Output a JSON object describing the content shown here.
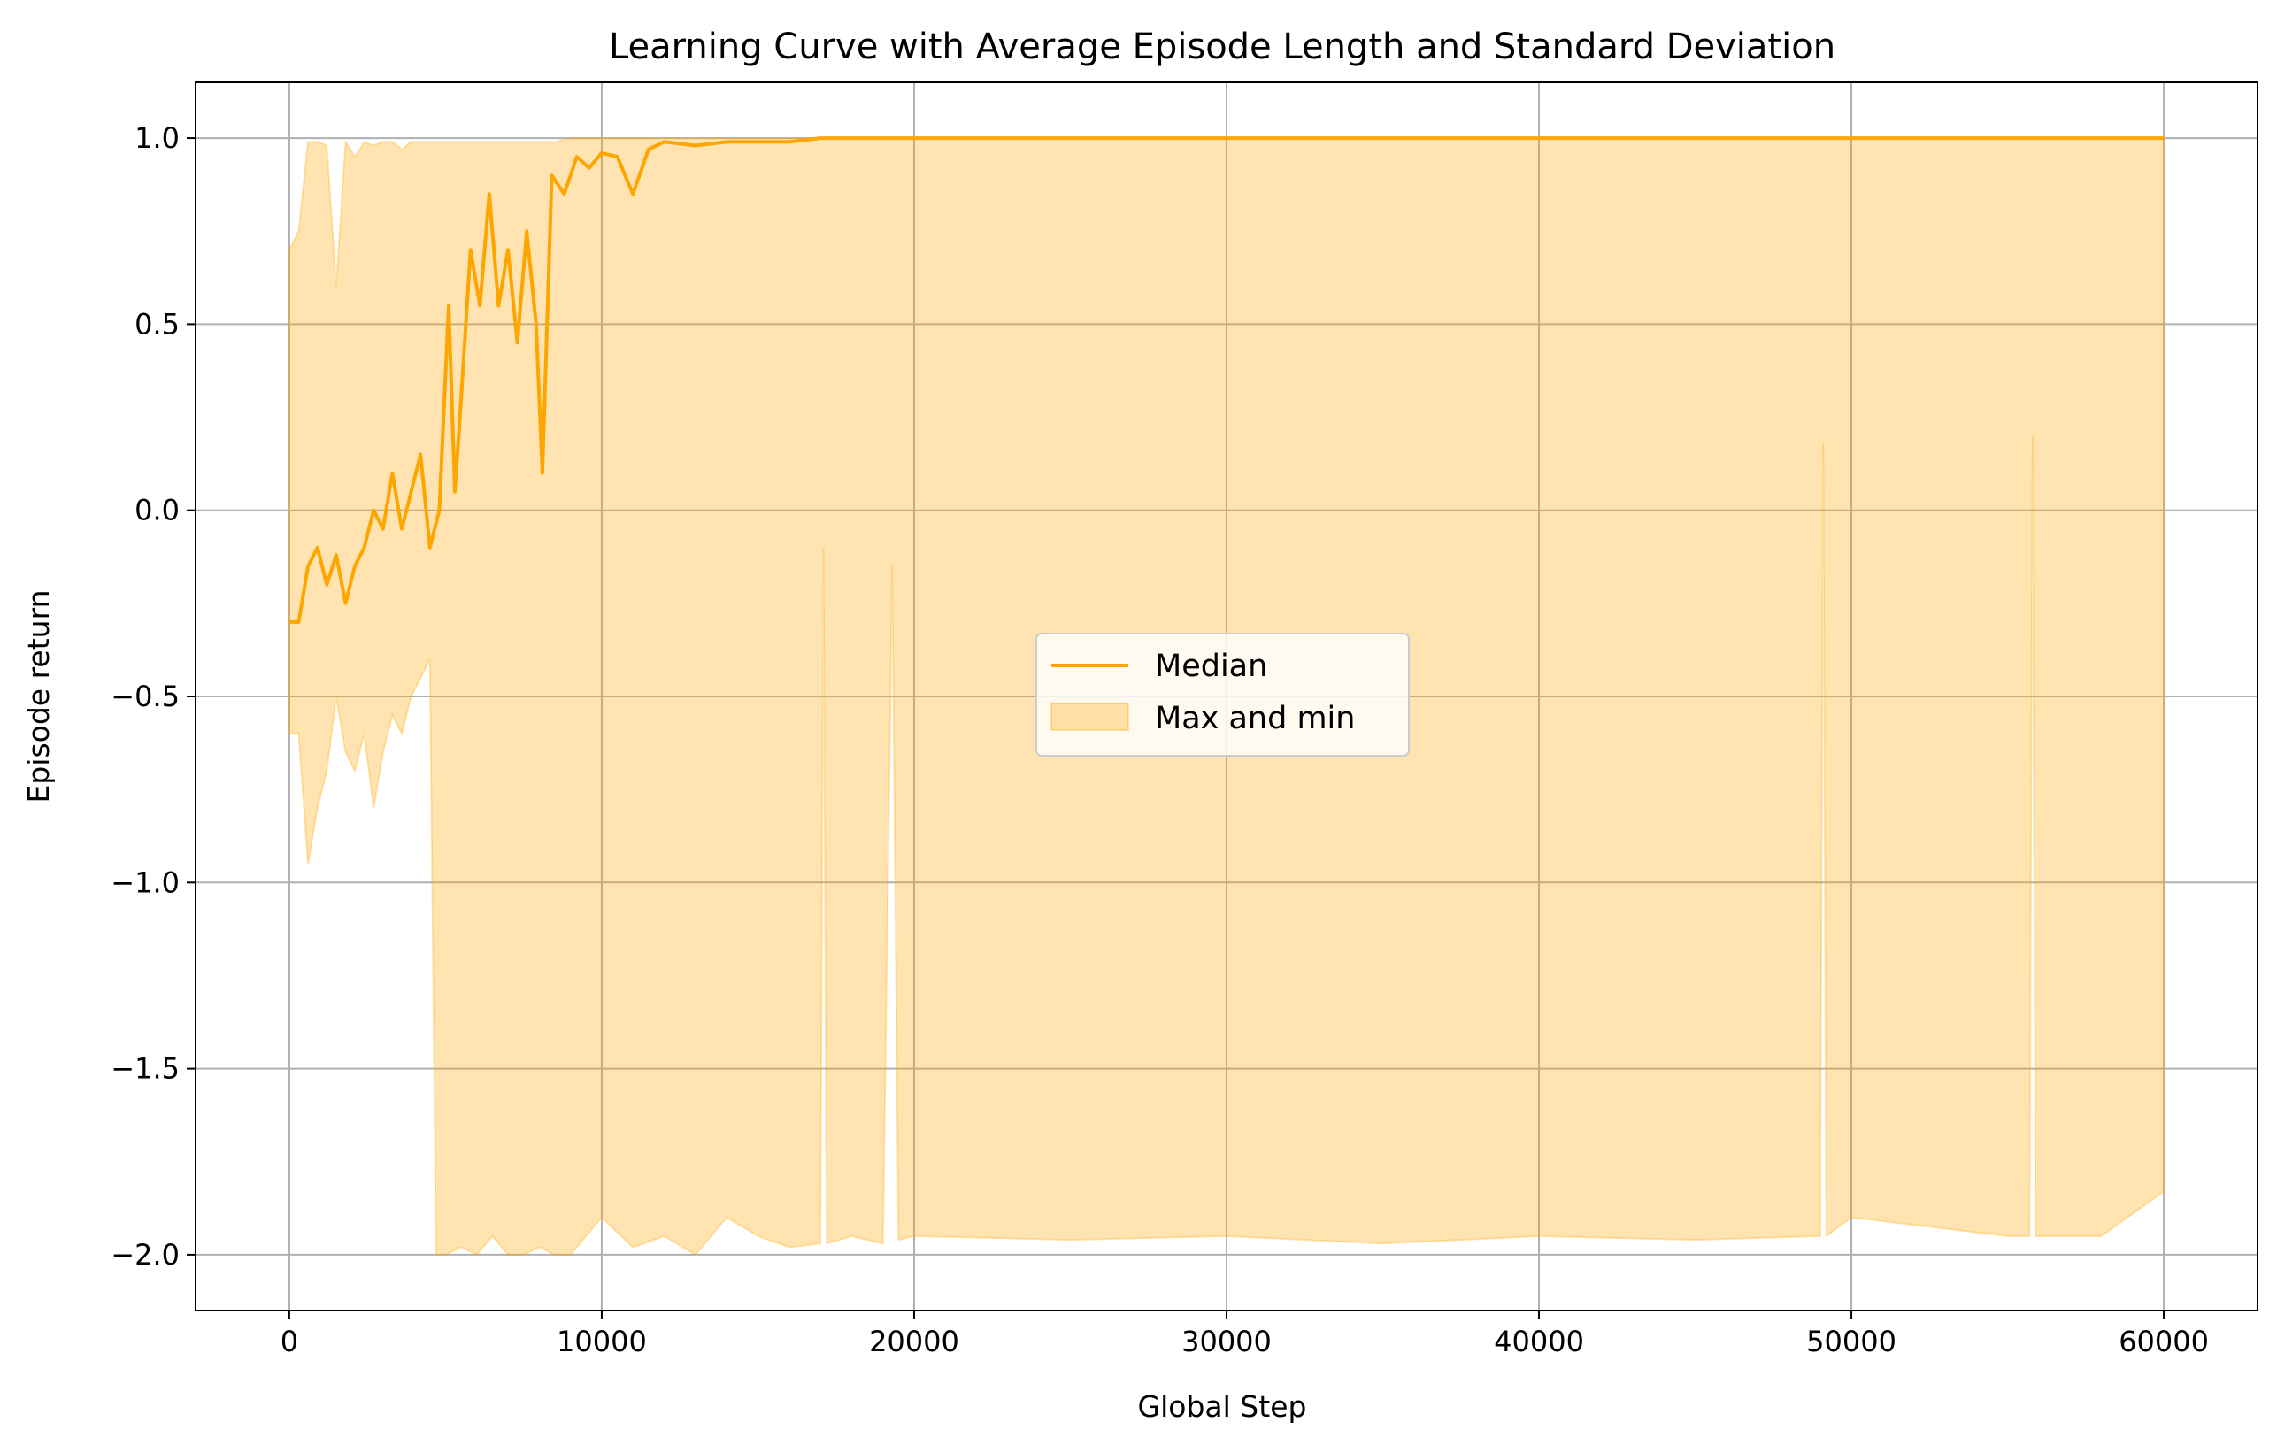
{
  "chart_data": {
    "type": "line",
    "title": "Learning Curve with Average Episode Length and Standard Deviation",
    "xlabel": "Global Step",
    "ylabel": "Episode return",
    "xlim": [
      -3000,
      63000
    ],
    "ylim": [
      -2.15,
      1.15
    ],
    "xticks": [
      0,
      10000,
      20000,
      30000,
      40000,
      50000,
      60000
    ],
    "xtick_labels": [
      "0",
      "10000",
      "20000",
      "30000",
      "40000",
      "50000",
      "60000"
    ],
    "yticks": [
      1.0,
      0.5,
      0.0,
      -0.5,
      -1.0,
      -1.5,
      -2.0
    ],
    "ytick_labels": [
      "1.0",
      "0.5",
      "0.0",
      "−0.5",
      "−1.0",
      "−1.5",
      "−2.0"
    ],
    "grid": true,
    "legend_position": "center",
    "legend": [
      "Median",
      "Max and min"
    ],
    "colors": {
      "line": "#ffa500",
      "band": "#ffa500",
      "grid": "#b0b0b0"
    },
    "series": [
      {
        "name": "Median",
        "kind": "line",
        "x": [
          0,
          300,
          600,
          900,
          1200,
          1500,
          1800,
          2100,
          2400,
          2700,
          3000,
          3300,
          3600,
          3900,
          4200,
          4500,
          4800,
          5100,
          5300,
          5500,
          5800,
          6100,
          6400,
          6700,
          7000,
          7300,
          7600,
          7900,
          8100,
          8400,
          8800,
          9200,
          9600,
          10000,
          10500,
          11000,
          11500,
          12000,
          13000,
          14000,
          15000,
          16000,
          17000,
          18000,
          19000,
          20000,
          22000,
          25000,
          30000,
          35000,
          40000,
          45000,
          50000,
          55000,
          60000
        ],
        "values": [
          -0.3,
          -0.3,
          -0.15,
          -0.1,
          -0.2,
          -0.12,
          -0.25,
          -0.15,
          -0.1,
          0.0,
          -0.05,
          0.1,
          -0.05,
          0.05,
          0.15,
          -0.1,
          0.0,
          0.55,
          0.05,
          0.3,
          0.7,
          0.55,
          0.85,
          0.55,
          0.7,
          0.45,
          0.75,
          0.5,
          0.1,
          0.9,
          0.85,
          0.95,
          0.92,
          0.96,
          0.95,
          0.85,
          0.97,
          0.99,
          0.98,
          0.99,
          0.99,
          0.99,
          1.0,
          1.0,
          1.0,
          1.0,
          1.0,
          1.0,
          1.0,
          1.0,
          1.0,
          1.0,
          1.0,
          1.0,
          1.0
        ]
      },
      {
        "name": "Max and min",
        "kind": "band",
        "x": [
          0,
          300,
          600,
          900,
          1200,
          1500,
          1800,
          2100,
          2400,
          2700,
          3000,
          3300,
          3600,
          3900,
          4200,
          4500,
          4700,
          5000,
          5500,
          6000,
          6500,
          7000,
          7500,
          8000,
          8500,
          9000,
          10000,
          11000,
          12000,
          13000,
          14000,
          15000,
          16000,
          17000,
          17100,
          17200,
          18000,
          19000,
          19300,
          19500,
          20000,
          25000,
          30000,
          35000,
          40000,
          45000,
          49000,
          49100,
          49200,
          50000,
          55000,
          55700,
          55800,
          55900,
          58000,
          60000
        ],
        "lower": [
          -0.6,
          -0.6,
          -0.95,
          -0.8,
          -0.7,
          -0.5,
          -0.65,
          -0.7,
          -0.6,
          -0.8,
          -0.65,
          -0.55,
          -0.6,
          -0.5,
          -0.45,
          -0.4,
          -2.0,
          -2.0,
          -1.98,
          -2.0,
          -1.95,
          -2.0,
          -2.0,
          -1.98,
          -2.0,
          -2.0,
          -1.9,
          -1.98,
          -1.95,
          -2.0,
          -1.9,
          -1.95,
          -1.98,
          -1.97,
          -0.1,
          -1.97,
          -1.95,
          -1.97,
          -0.15,
          -1.96,
          -1.95,
          -1.96,
          -1.95,
          -1.97,
          -1.95,
          -1.96,
          -1.95,
          0.18,
          -1.95,
          -1.9,
          -1.95,
          -1.95,
          0.2,
          -1.95,
          -1.95,
          -1.83
        ],
        "upper": [
          0.7,
          0.75,
          0.99,
          0.99,
          0.98,
          0.6,
          0.99,
          0.95,
          0.99,
          0.98,
          0.99,
          0.99,
          0.97,
          0.99,
          0.99,
          0.99,
          0.99,
          0.99,
          0.99,
          0.99,
          0.99,
          0.99,
          0.99,
          0.99,
          0.99,
          1.0,
          1.0,
          1.0,
          1.0,
          1.0,
          1.0,
          1.0,
          1.0,
          1.0,
          1.0,
          1.0,
          1.0,
          1.0,
          1.0,
          1.0,
          1.0,
          1.0,
          1.0,
          1.0,
          1.0,
          1.0,
          1.0,
          1.0,
          1.0,
          1.0,
          1.0,
          1.0,
          1.0,
          1.0,
          1.0,
          1.0
        ]
      }
    ]
  }
}
